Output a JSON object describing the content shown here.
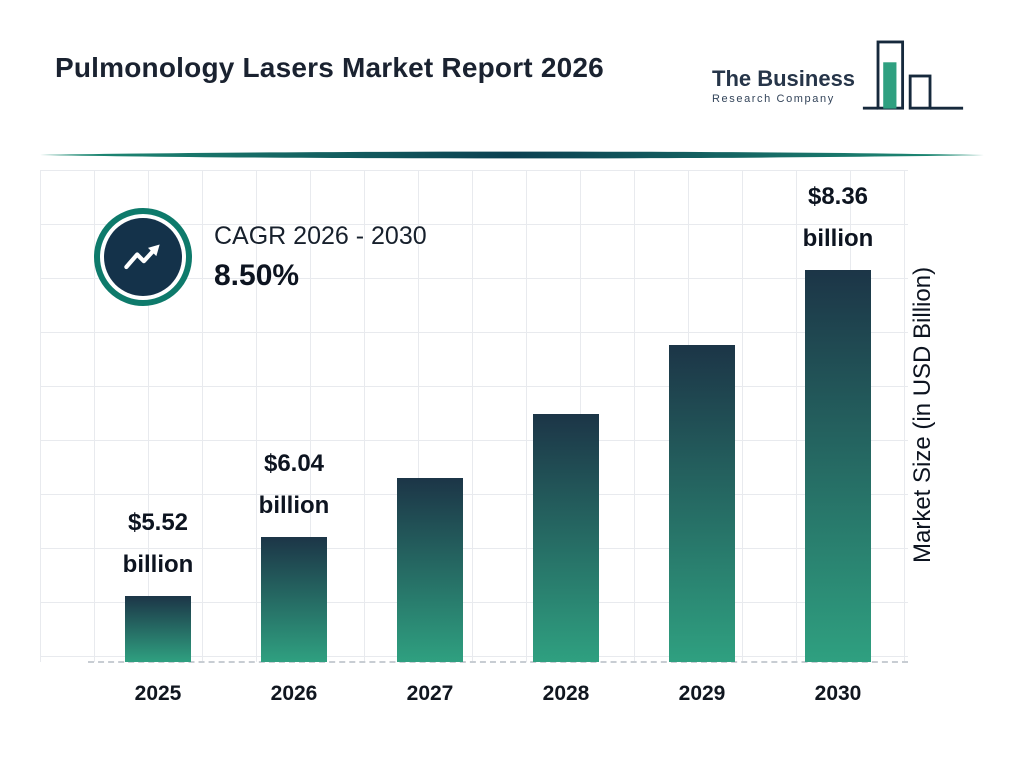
{
  "header": {
    "title": "Pulmonology Lasers Market Report 2026",
    "logo": {
      "line1": "The Business",
      "line2": "Research Company"
    }
  },
  "cagr": {
    "label": "CAGR 2026 - 2030",
    "value": "8.50%"
  },
  "chart_data": {
    "type": "bar",
    "title": "Pulmonology Lasers Market Report 2026",
    "categories": [
      "2025",
      "2026",
      "2027",
      "2028",
      "2029",
      "2030"
    ],
    "values": [
      5.52,
      6.04,
      6.55,
      7.11,
      7.71,
      8.36
    ],
    "bar_labels": [
      {
        "amount": "$5.52",
        "unit": "billion"
      },
      {
        "amount": "$6.04",
        "unit": "billion"
      },
      null,
      null,
      null,
      {
        "amount": "$8.36",
        "unit": "billion"
      }
    ],
    "xlabel": "",
    "ylabel": "Market Size (in USD Billion)",
    "ylim": [
      4.95,
      8.95
    ],
    "grid": true,
    "legend": "none",
    "colors": {
      "bar_top": "#1C3547",
      "bar_bottom": "#2FA080",
      "accent": "#0E7A6B"
    }
  }
}
